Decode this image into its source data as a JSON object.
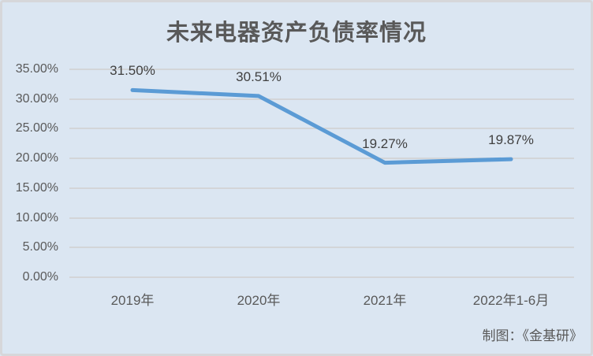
{
  "chart_data": {
    "type": "line",
    "title": "未来电器资产负债率情况",
    "categories": [
      "2019年",
      "2020年",
      "2021年",
      "2022年1-6月"
    ],
    "values": [
      31.5,
      30.51,
      19.27,
      19.87
    ],
    "data_labels": [
      "31.50%",
      "30.51%",
      "19.27%",
      "19.87%"
    ],
    "y_tick_values": [
      0,
      5,
      10,
      15,
      20,
      25,
      30,
      35
    ],
    "y_tick_labels": [
      "0.00%",
      "5.00%",
      "10.00%",
      "15.00%",
      "20.00%",
      "25.00%",
      "30.00%",
      "35.00%"
    ],
    "ylim": [
      0,
      35
    ],
    "xlabel": "",
    "ylabel": "",
    "grid": true,
    "legend": "none",
    "line_color": "#5b9bd5",
    "background_color": "#dbe6f2",
    "gridline_color": "#d3d5d8",
    "text_color": "#595959",
    "data_label_color": "#404040"
  },
  "footer": {
    "attribution": "制图：《金基研》"
  }
}
